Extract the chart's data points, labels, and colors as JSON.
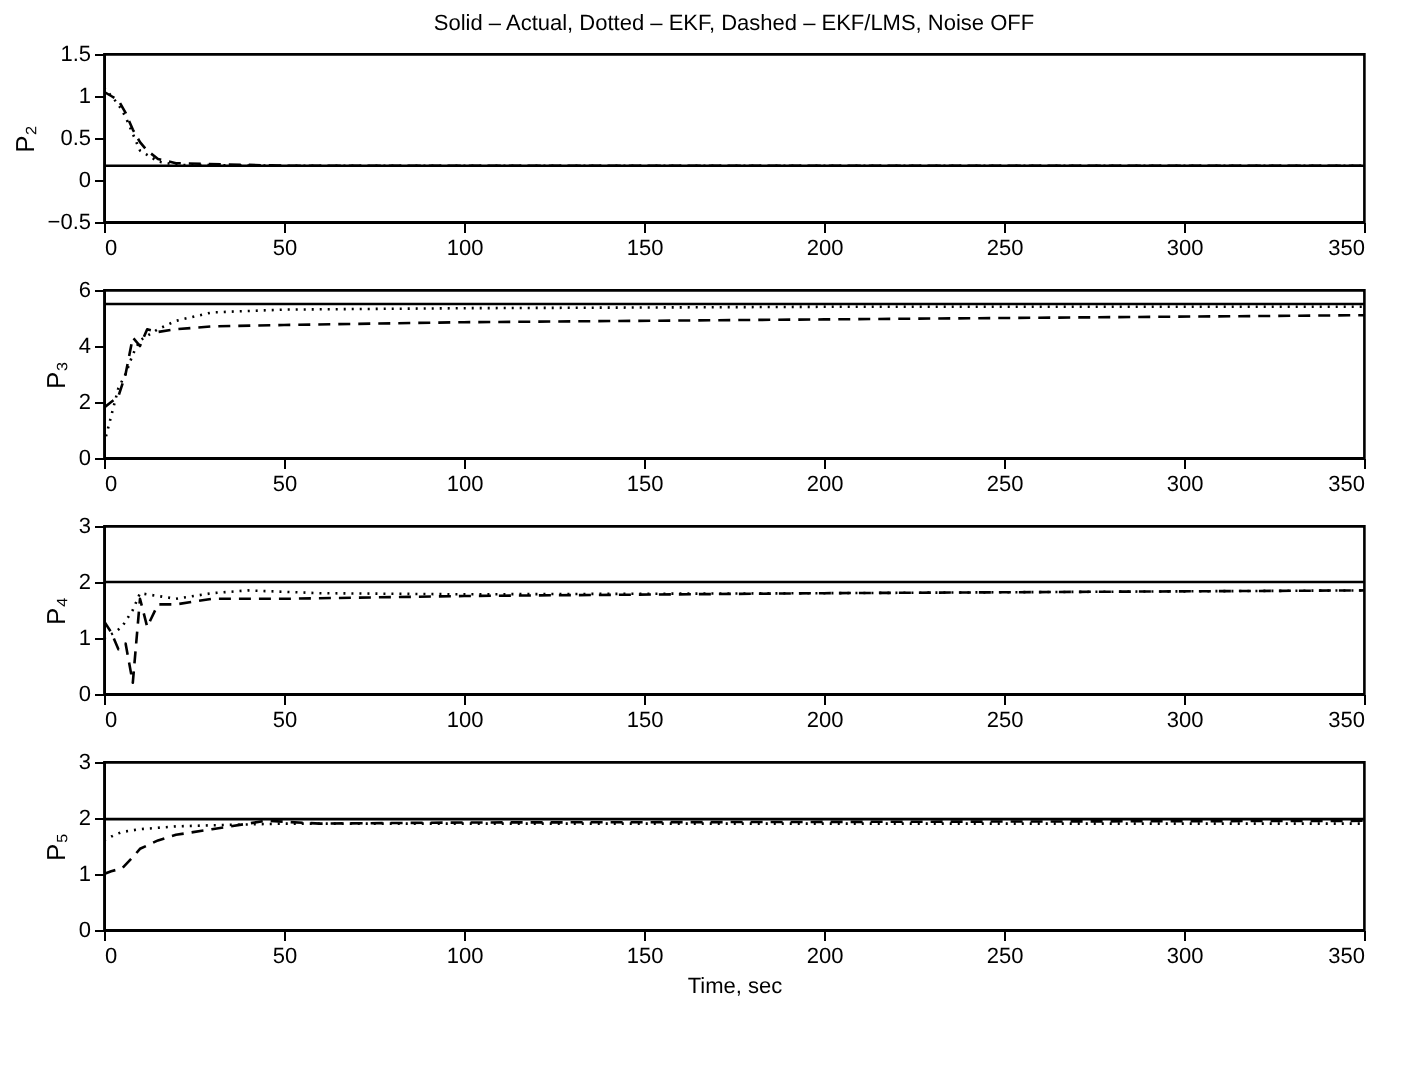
{
  "chart_data": [
    {
      "type": "line",
      "title": "Solid – Actual, Dotted – EKF, Dashed – EKF/LMS, Noise OFF",
      "ylabel": "P₂",
      "xlim": [
        0,
        350
      ],
      "xticks": [
        0,
        50,
        100,
        150,
        200,
        250,
        300,
        350
      ],
      "ylim": [
        -0.5,
        1.5
      ],
      "yticks": [
        -0.5,
        0,
        0.5,
        1,
        1.5
      ],
      "grid": false,
      "legend": false,
      "series": [
        {
          "color": "#000000",
          "line_style": "solid",
          "x": [
            0,
            350
          ],
          "values": [
            0.17,
            0.17
          ]
        },
        {
          "color": "#000000",
          "line_style": "dotted",
          "x": [
            0,
            2,
            4,
            6,
            8,
            10,
            12,
            15,
            20,
            50,
            350
          ],
          "values": [
            1.1,
            1.0,
            0.9,
            0.75,
            0.55,
            0.35,
            0.3,
            0.22,
            0.18,
            0.17,
            0.17
          ]
        },
        {
          "color": "#000000",
          "line_style": "dashed",
          "x": [
            0,
            2,
            4,
            6,
            8,
            10,
            12,
            15,
            20,
            50,
            350
          ],
          "values": [
            1.05,
            1.0,
            0.95,
            0.8,
            0.6,
            0.45,
            0.35,
            0.25,
            0.2,
            0.17,
            0.17
          ]
        }
      ]
    },
    {
      "type": "line",
      "ylabel": "P₃",
      "xlim": [
        0,
        350
      ],
      "xticks": [
        0,
        50,
        100,
        150,
        200,
        250,
        300,
        350
      ],
      "ylim": [
        0,
        6
      ],
      "yticks": [
        0,
        2,
        4,
        6
      ],
      "grid": false,
      "legend": false,
      "series": [
        {
          "color": "#000000",
          "line_style": "solid",
          "x": [
            0,
            350
          ],
          "values": [
            5.5,
            5.5
          ]
        },
        {
          "color": "#000000",
          "line_style": "dotted",
          "x": [
            0,
            2,
            4,
            6,
            8,
            10,
            15,
            20,
            30,
            50,
            100,
            200,
            350
          ],
          "values": [
            0.5,
            1.5,
            2.5,
            3.0,
            3.7,
            4.2,
            4.6,
            4.9,
            5.2,
            5.3,
            5.35,
            5.4,
            5.4
          ]
        },
        {
          "color": "#000000",
          "line_style": "dashed",
          "x": [
            0,
            2,
            4,
            6,
            8,
            10,
            12,
            15,
            20,
            30,
            50,
            100,
            200,
            350
          ],
          "values": [
            1.8,
            2.0,
            2.2,
            3.0,
            4.3,
            4.0,
            4.6,
            4.5,
            4.6,
            4.7,
            4.75,
            4.85,
            4.95,
            5.1
          ]
        }
      ]
    },
    {
      "type": "line",
      "ylabel": "P₄",
      "xlim": [
        0,
        350
      ],
      "xticks": [
        0,
        50,
        100,
        150,
        200,
        250,
        300,
        350
      ],
      "ylim": [
        0,
        3
      ],
      "yticks": [
        0,
        1,
        2,
        3
      ],
      "grid": false,
      "legend": false,
      "series": [
        {
          "color": "#000000",
          "line_style": "solid",
          "x": [
            0,
            350
          ],
          "values": [
            2.0,
            2.0
          ]
        },
        {
          "color": "#000000",
          "line_style": "dotted",
          "x": [
            0,
            3,
            5,
            8,
            10,
            15,
            20,
            30,
            40,
            60,
            100,
            200,
            350
          ],
          "values": [
            1.0,
            1.1,
            1.2,
            1.5,
            1.8,
            1.75,
            1.7,
            1.8,
            1.85,
            1.8,
            1.78,
            1.8,
            1.85
          ]
        },
        {
          "color": "#000000",
          "line_style": "dashed",
          "x": [
            0,
            2,
            4,
            6,
            8,
            10,
            12,
            15,
            20,
            30,
            50,
            100,
            200,
            350
          ],
          "values": [
            1.3,
            1.1,
            0.8,
            0.9,
            0.2,
            1.7,
            1.2,
            1.6,
            1.6,
            1.7,
            1.7,
            1.75,
            1.8,
            1.85
          ]
        }
      ]
    },
    {
      "type": "line",
      "ylabel": "P₅",
      "xlabel": "Time, sec",
      "xlim": [
        0,
        350
      ],
      "xticks": [
        0,
        50,
        100,
        150,
        200,
        250,
        300,
        350
      ],
      "ylim": [
        0,
        3
      ],
      "yticks": [
        0,
        1,
        2,
        3
      ],
      "grid": false,
      "legend": false,
      "series": [
        {
          "color": "#000000",
          "line_style": "solid",
          "x": [
            0,
            350
          ],
          "values": [
            1.98,
            1.98
          ]
        },
        {
          "color": "#000000",
          "line_style": "dotted",
          "x": [
            0,
            3,
            5,
            10,
            20,
            30,
            50,
            100,
            200,
            350
          ],
          "values": [
            1.6,
            1.7,
            1.75,
            1.8,
            1.85,
            1.87,
            1.9,
            1.9,
            1.9,
            1.9
          ]
        },
        {
          "color": "#000000",
          "line_style": "dashed",
          "x": [
            0,
            2,
            5,
            8,
            10,
            15,
            20,
            30,
            45,
            60,
            100,
            200,
            350
          ],
          "values": [
            1.0,
            1.05,
            1.1,
            1.3,
            1.45,
            1.6,
            1.7,
            1.8,
            1.95,
            1.9,
            1.92,
            1.93,
            1.95
          ]
        }
      ]
    }
  ]
}
